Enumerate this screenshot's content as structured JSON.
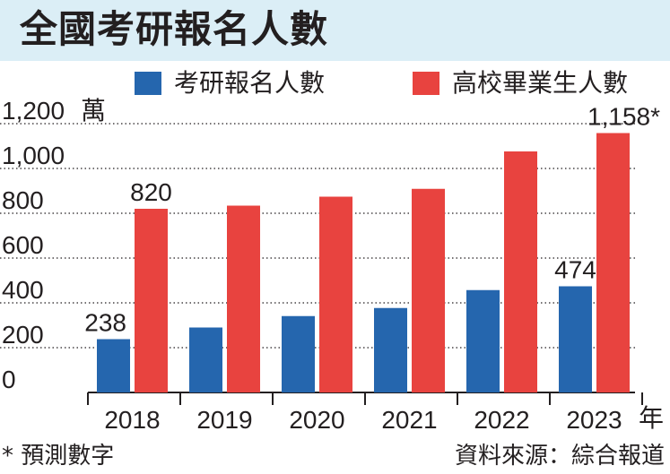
{
  "title": "全國考研報名人數",
  "footnote": "* 預測數字",
  "source": "資料來源：綜合報道",
  "chart_data": {
    "type": "bar",
    "categories": [
      "2018",
      "2019",
      "2020",
      "2021",
      "2022",
      "2023"
    ],
    "series": [
      {
        "name": "考研報名人數",
        "color": "#2566ae",
        "values": [
          238,
          290,
          341,
          377,
          457,
          474
        ]
      },
      {
        "name": "高校畢業生人數",
        "color": "#e8433f",
        "values": [
          820,
          834,
          874,
          909,
          1076,
          1158
        ]
      }
    ],
    "data_labels": [
      {
        "series": 0,
        "index": 0,
        "text": "238"
      },
      {
        "series": 0,
        "index": 5,
        "text": "474"
      },
      {
        "series": 1,
        "index": 0,
        "text": "820"
      },
      {
        "series": 1,
        "index": 5,
        "text": "1,158*"
      }
    ],
    "y_ticks": [
      0,
      200,
      400,
      600,
      800,
      1000,
      1200
    ],
    "y_tick_labels": [
      "0",
      "200",
      "400",
      "600",
      "800",
      "1,000",
      "1,200"
    ],
    "ylabel": "萬",
    "xlabel": "年",
    "ylim": [
      0,
      1200
    ],
    "grid": true,
    "legend_position": "top"
  }
}
